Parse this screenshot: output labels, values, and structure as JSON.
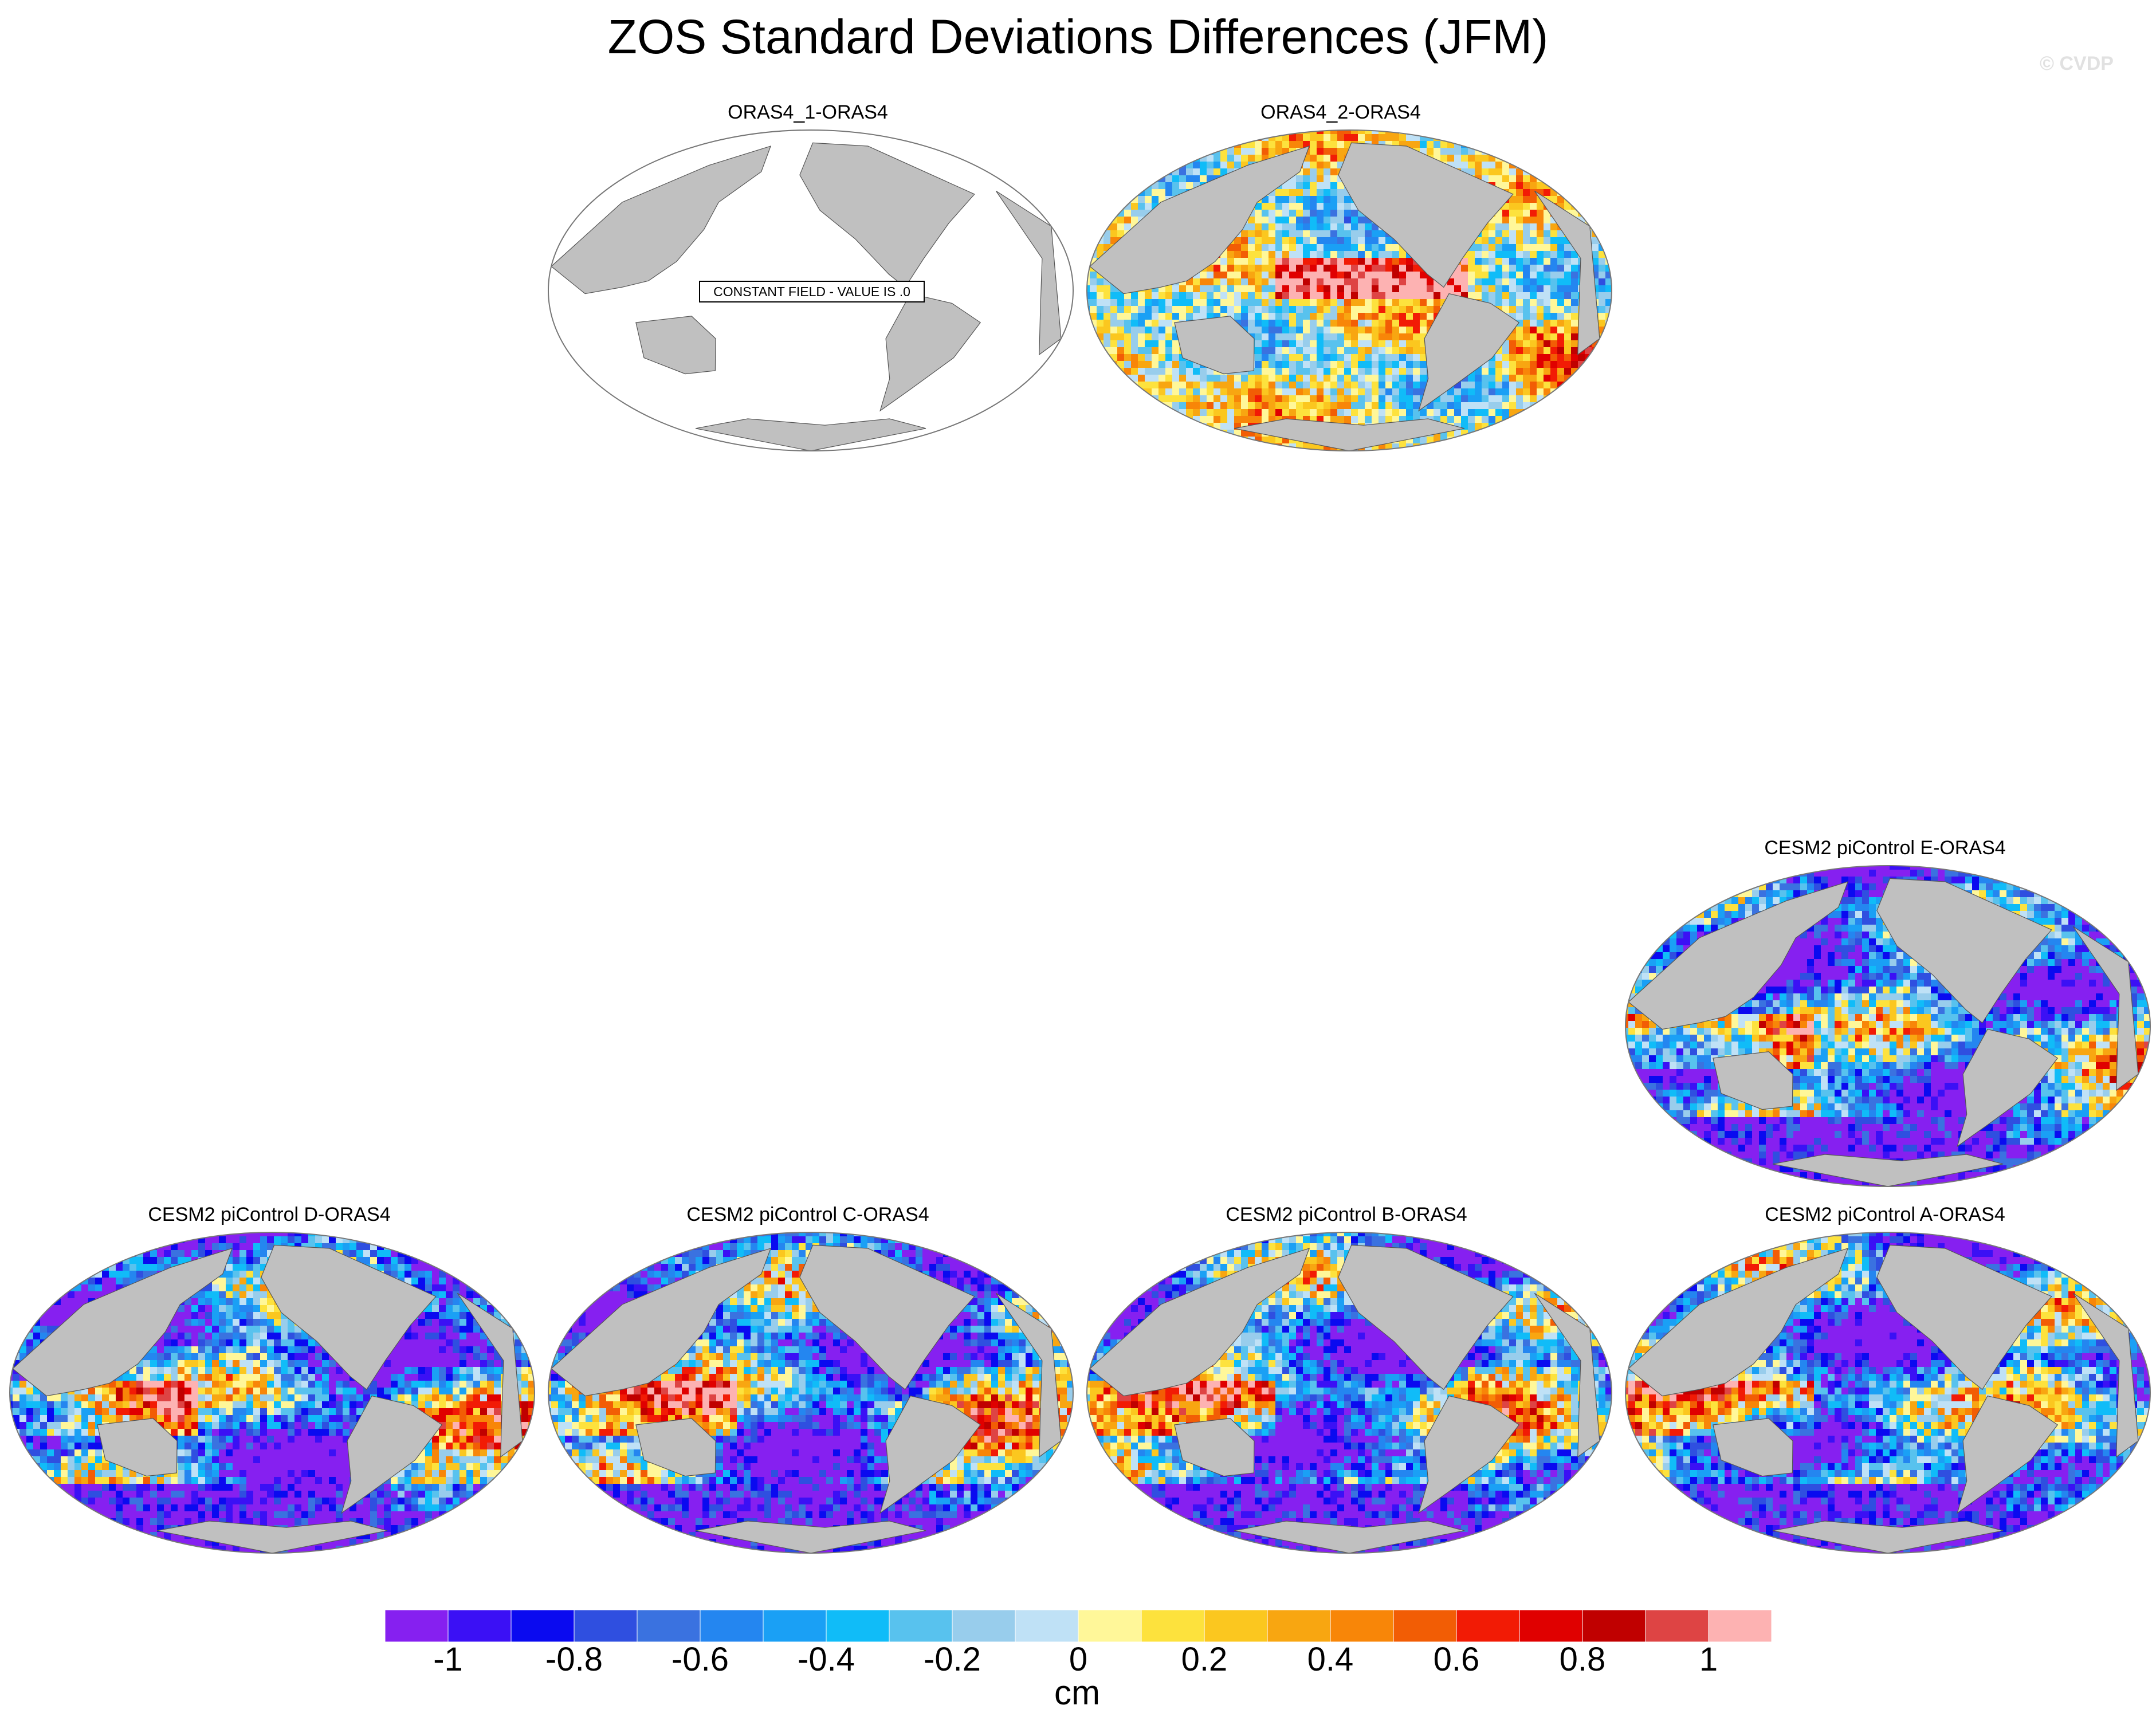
{
  "title": "ZOS Standard Deviations Differences (JFM)",
  "credit": "© CVDP",
  "panels": [
    {
      "id": "p1",
      "title": "ORAS4_1-ORAS4",
      "pattern": "constant"
    },
    {
      "id": "p2",
      "title": "ORAS4_2-ORAS4",
      "pattern": "reanalysis"
    },
    {
      "id": "p3",
      "title": "CESM2 piControl E-ORAS4",
      "pattern": "model"
    },
    {
      "id": "p4",
      "title": "CESM2 piControl D-ORAS4",
      "pattern": "model"
    },
    {
      "id": "p5",
      "title": "CESM2 piControl C-ORAS4",
      "pattern": "model"
    },
    {
      "id": "p6",
      "title": "CESM2 piControl B-ORAS4",
      "pattern": "model"
    },
    {
      "id": "p7",
      "title": "CESM2 piControl A-ORAS4",
      "pattern": "model"
    }
  ],
  "constant_label": "CONSTANT FIELD - VALUE IS .0",
  "colorbar": {
    "units": "cm",
    "tick_labels": [
      "-1",
      "-0.8",
      "-0.6",
      "-0.4",
      "-0.2",
      "0",
      "0.2",
      "0.4",
      "0.6",
      "0.8",
      "1"
    ],
    "tick_values": [
      -1,
      -0.8,
      -0.6,
      -0.4,
      -0.2,
      0,
      0.2,
      0.4,
      0.6,
      0.8,
      1
    ],
    "levels": [
      -1.1,
      -1,
      -0.9,
      -0.8,
      -0.7,
      -0.6,
      -0.5,
      -0.4,
      -0.3,
      -0.2,
      -0.1,
      0,
      0.1,
      0.2,
      0.3,
      0.4,
      0.5,
      0.6,
      0.7,
      0.8,
      0.9,
      1,
      1.1
    ],
    "colors": [
      "#8620f0",
      "#3b10f5",
      "#0a0af0",
      "#2f4fe0",
      "#3a72e0",
      "#2486f0",
      "#1aa0f5",
      "#10bcf8",
      "#58c2ee",
      "#98cdec",
      "#bfe1f6",
      "#fff799",
      "#fde23d",
      "#fbc71f",
      "#f8a611",
      "#f88608",
      "#f25d05",
      "#f21b05",
      "#e00000",
      "#c00000",
      "#de4444",
      "#fdb2b2"
    ]
  },
  "land_color": "#c0c0c0",
  "ocean_color_constant": "#ffffff"
}
